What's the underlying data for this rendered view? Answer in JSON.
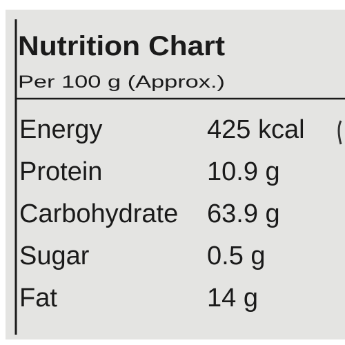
{
  "header": {
    "title": "Nutrition Chart",
    "subtitle": "Per 100 g (Approx.)"
  },
  "table": {
    "rows": [
      [
        "Energy",
        "425 kcal"
      ],
      [
        "Protein",
        "10.9 g"
      ],
      [
        "Carbohydrate",
        "63.9 g"
      ],
      [
        "Sugar",
        "0.5 g"
      ],
      [
        "Fat",
        "14 g"
      ]
    ]
  }
}
